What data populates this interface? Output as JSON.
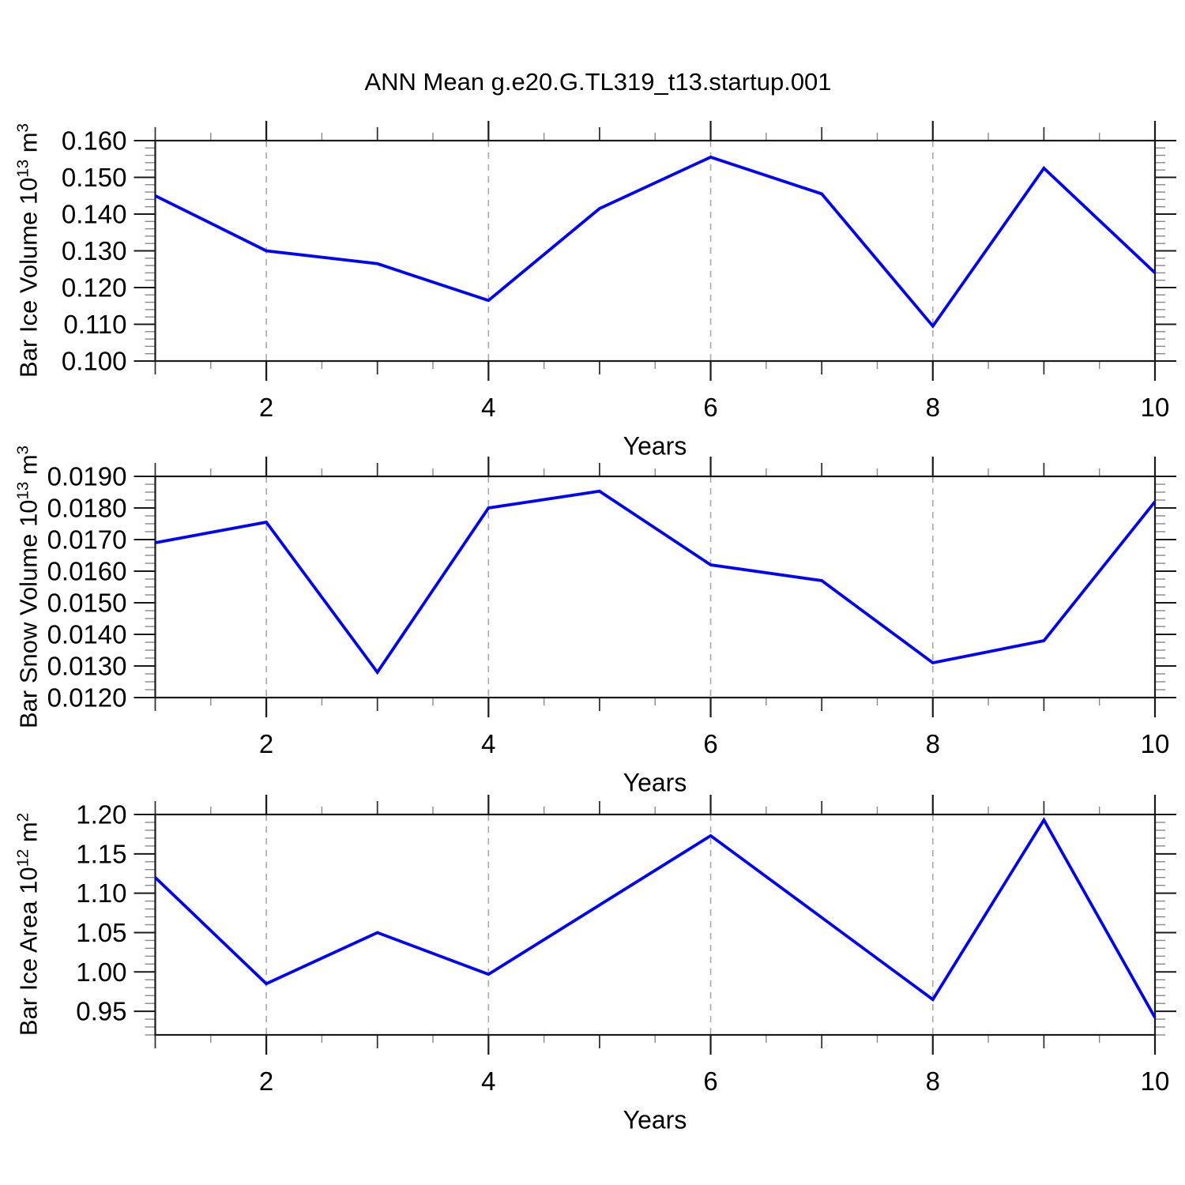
{
  "title": "ANN Mean g.e20.G.TL319_t13.startup.001",
  "axis_color": "#1a1a1a",
  "minor_tick_color": "#888888",
  "gridline_color": "#a8a8a8",
  "chart_data": [
    {
      "type": "line",
      "name": "bar-ice-volume",
      "xlabel": "Years",
      "ylabel_parts": {
        "prefix": "Bar Ice Volume 10",
        "power": "13",
        "unit": " m",
        "unit_power": "3"
      },
      "x": [
        1,
        2,
        3,
        4,
        5,
        6,
        7,
        8,
        9,
        10
      ],
      "y": [
        0.145,
        0.13,
        0.1265,
        0.1165,
        0.1415,
        0.1555,
        0.1455,
        0.1095,
        0.1525,
        0.124
      ],
      "xlim": [
        1,
        10
      ],
      "ylim": [
        0.1,
        0.16
      ],
      "xticks_major": [
        2,
        4,
        6,
        8,
        10
      ],
      "xtick_labels": [
        "2",
        "4",
        "6",
        "8",
        "10"
      ],
      "xticks_mid": [
        1,
        3,
        5,
        7,
        9
      ],
      "xticks_minor": [
        1.5,
        2.5,
        3.5,
        4.5,
        5.5,
        6.5,
        7.5,
        8.5,
        9.5
      ],
      "gridlines_x": [
        2,
        4,
        6,
        8
      ],
      "ytick_values": [
        0.1,
        0.11,
        0.12,
        0.13,
        0.14,
        0.15,
        0.16
      ],
      "ytick_labels": [
        "0.100",
        "0.110",
        "0.120",
        "0.130",
        "0.140",
        "0.150",
        "0.160"
      ],
      "yminor_step": 0.002,
      "line_color": "#0000ff"
    },
    {
      "type": "line",
      "name": "bar-snow-volume",
      "xlabel": "Years",
      "ylabel_parts": {
        "prefix": "Bar Snow Volume 10",
        "power": "13",
        "unit": " m",
        "unit_power": "3"
      },
      "x": [
        1,
        2,
        3,
        4,
        5,
        6,
        7,
        8,
        9,
        10
      ],
      "y": [
        0.0169,
        0.01755,
        0.0128,
        0.018,
        0.01853,
        0.0162,
        0.0157,
        0.0131,
        0.0138,
        0.0182
      ],
      "xlim": [
        1,
        10
      ],
      "ylim": [
        0.012,
        0.019
      ],
      "xticks_major": [
        2,
        4,
        6,
        8,
        10
      ],
      "xtick_labels": [
        "2",
        "4",
        "6",
        "8",
        "10"
      ],
      "xticks_mid": [
        1,
        3,
        5,
        7,
        9
      ],
      "xticks_minor": [
        1.5,
        2.5,
        3.5,
        4.5,
        5.5,
        6.5,
        7.5,
        8.5,
        9.5
      ],
      "gridlines_x": [
        2,
        4,
        6,
        8
      ],
      "ytick_values": [
        0.012,
        0.013,
        0.014,
        0.015,
        0.016,
        0.017,
        0.018,
        0.019
      ],
      "ytick_labels": [
        "0.0120",
        "0.0130",
        "0.0140",
        "0.0150",
        "0.0160",
        "0.0170",
        "0.0180",
        "0.0190"
      ],
      "yminor_step": 0.00025,
      "line_color": "#0000ff"
    },
    {
      "type": "line",
      "name": "bar-ice-area",
      "xlabel": "Years",
      "ylabel_parts": {
        "prefix": "Bar Ice Area 10",
        "power": "12",
        "unit": " m",
        "unit_power": "2"
      },
      "x": [
        1,
        2,
        3,
        4,
        5,
        6,
        7,
        8,
        9,
        10
      ],
      "y": [
        1.12,
        0.985,
        1.05,
        0.997,
        1.085,
        1.173,
        1.069,
        0.965,
        1.193,
        0.942
      ],
      "xlim": [
        1,
        10
      ],
      "ylim": [
        0.92,
        1.2
      ],
      "xticks_major": [
        2,
        4,
        6,
        8,
        10
      ],
      "xtick_labels": [
        "2",
        "4",
        "6",
        "8",
        "10"
      ],
      "xticks_mid": [
        1,
        3,
        5,
        7,
        9
      ],
      "xticks_minor": [
        1.5,
        2.5,
        3.5,
        4.5,
        5.5,
        6.5,
        7.5,
        8.5,
        9.5
      ],
      "gridlines_x": [
        2,
        4,
        6,
        8
      ],
      "ytick_values": [
        0.95,
        1.0,
        1.05,
        1.1,
        1.15,
        1.2
      ],
      "ytick_labels": [
        "0.95",
        "1.00",
        "1.05",
        "1.10",
        "1.15",
        "1.20"
      ],
      "yminor_step": 0.01,
      "line_color": "#0000ff"
    }
  ]
}
